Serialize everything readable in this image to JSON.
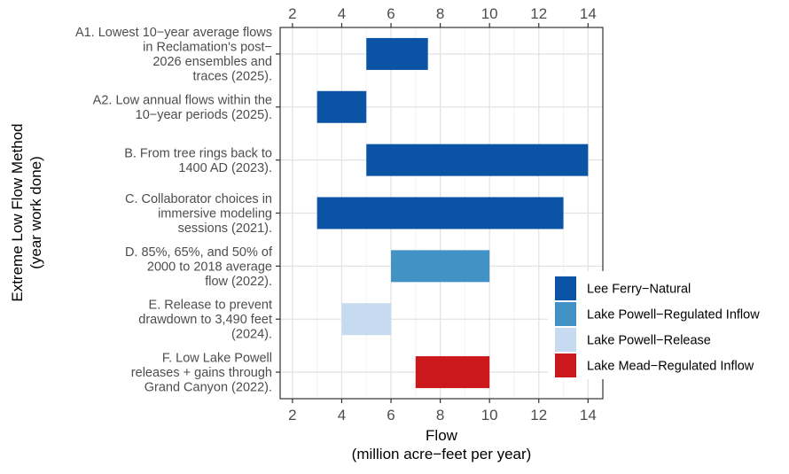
{
  "chart_data": {
    "type": "bar",
    "orientation": "horizontal-range",
    "title": "",
    "xlabel": "Flow",
    "xlabel_units": "(million acre−feet per year)",
    "ylabel": "Extreme Low Flow Method",
    "ylabel_sub": "(year work done)",
    "xlim": [
      1.5,
      14.6
    ],
    "x_ticks": [
      2,
      4,
      6,
      8,
      10,
      12,
      14
    ],
    "x_tick_labels": [
      "2",
      "4",
      "6",
      "8",
      "10",
      "12",
      "14"
    ],
    "grid": true,
    "legend_position": "right",
    "categories": [
      {
        "lines": [
          "A1. Lowest 10−year average flows",
          "in Reclamation's post−",
          "2026 ensembles and",
          "traces (2025)."
        ]
      },
      {
        "lines": [
          "A2. Low annual flows within the",
          "10−year periods (2025)."
        ]
      },
      {
        "lines": [
          "B. From tree rings back to",
          "1400 AD (2023)."
        ]
      },
      {
        "lines": [
          "C. Collaborator choices in",
          "immersive modeling",
          "sessions (2021)."
        ]
      },
      {
        "lines": [
          "D. 85%, 65%, and 50% of",
          "2000 to 2018 average",
          "flow (2022)."
        ]
      },
      {
        "lines": [
          "E. Release to prevent",
          "drawdown to 3,490 feet",
          "(2024)."
        ]
      },
      {
        "lines": [
          "F. Low Lake Powell",
          "releases + gains through",
          "Grand Canyon (2022)."
        ]
      }
    ],
    "series": [
      {
        "name": "Lee Ferry−Natural",
        "color": "#0b53a5"
      },
      {
        "name": "Lake Powell−Regulated Inflow",
        "color": "#4292c6"
      },
      {
        "name": "Lake Powell−Release",
        "color": "#c6dbef"
      },
      {
        "name": "Lake Mead−Regulated Inflow",
        "color": "#cb181d"
      }
    ],
    "bars": [
      {
        "category": 0,
        "series": 0,
        "start": 5,
        "end": 7.5
      },
      {
        "category": 1,
        "series": 0,
        "start": 3,
        "end": 5
      },
      {
        "category": 2,
        "series": 0,
        "start": 5,
        "end": 14
      },
      {
        "category": 3,
        "series": 0,
        "start": 3,
        "end": 13
      },
      {
        "category": 4,
        "series": 1,
        "start": 6,
        "end": 10
      },
      {
        "category": 5,
        "series": 2,
        "start": 4,
        "end": 6
      },
      {
        "category": 6,
        "series": 3,
        "start": 7,
        "end": 10
      }
    ]
  }
}
